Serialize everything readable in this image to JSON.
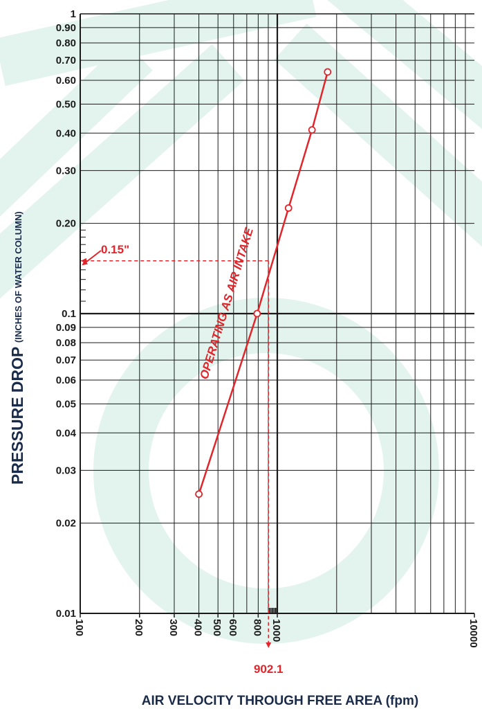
{
  "colors": {
    "accent": "#e0252b",
    "axis_text": "#1a2b4a",
    "grid": "#1a1a1a",
    "watermark": "#e3f4ee"
  },
  "chart_data": {
    "type": "line",
    "xscale": "log",
    "yscale": "log",
    "xlim": [
      100,
      10000
    ],
    "ylim": [
      0.01,
      1
    ],
    "grid": true,
    "xlabel": "AIR VELOCITY THROUGH FREE AREA (fpm)",
    "ylabel": "PRESSURE DROP",
    "ylabel_sub": "(INCHES OF WATER COLUMN)",
    "x_ticks": [
      {
        "value": 100,
        "label": "100"
      },
      {
        "value": 200,
        "label": "200"
      },
      {
        "value": 300,
        "label": "300"
      },
      {
        "value": 400,
        "label": "400"
      },
      {
        "value": 500,
        "label": "500"
      },
      {
        "value": 600,
        "label": "600"
      },
      {
        "value": 800,
        "label": "800"
      },
      {
        "value": 1000,
        "label": "1000"
      },
      {
        "value": 10000,
        "label": "10000"
      }
    ],
    "y_ticks": [
      {
        "value": 1,
        "label": "1"
      },
      {
        "value": 0.9,
        "label": "0.90"
      },
      {
        "value": 0.8,
        "label": "0.80"
      },
      {
        "value": 0.7,
        "label": "0.70"
      },
      {
        "value": 0.6,
        "label": "0.60"
      },
      {
        "value": 0.5,
        "label": "0.50"
      },
      {
        "value": 0.4,
        "label": "0.40"
      },
      {
        "value": 0.3,
        "label": "0.30"
      },
      {
        "value": 0.2,
        "label": "0.20"
      },
      {
        "value": 0.1,
        "label": "0.1"
      },
      {
        "value": 0.09,
        "label": "0.09"
      },
      {
        "value": 0.08,
        "label": "0.08"
      },
      {
        "value": 0.07,
        "label": "0.07"
      },
      {
        "value": 0.06,
        "label": "0.06"
      },
      {
        "value": 0.05,
        "label": "0.05"
      },
      {
        "value": 0.04,
        "label": "0.04"
      },
      {
        "value": 0.03,
        "label": "0.03"
      },
      {
        "value": 0.02,
        "label": "0.02"
      },
      {
        "value": 0.01,
        "label": "0.01"
      }
    ],
    "series": [
      {
        "name": "OPERATING AS AIR INTAKE",
        "x": [
          400,
          790,
          1140,
          1500,
          1800
        ],
        "y": [
          0.025,
          0.1,
          0.225,
          0.41,
          0.64
        ]
      }
    ],
    "annotations": [
      {
        "text": "0.15\"",
        "axis": "y",
        "value": 0.15
      },
      {
        "text": "902.1",
        "axis": "x",
        "value": 902.1
      }
    ]
  }
}
